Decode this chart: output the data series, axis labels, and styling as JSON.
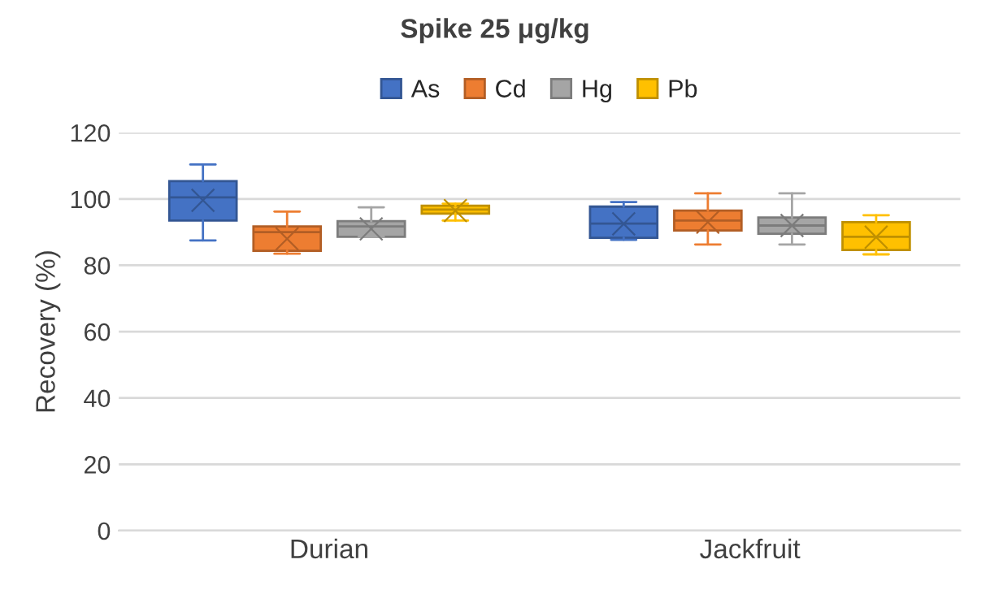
{
  "chart_data": {
    "type": "box",
    "title": "Spike 25 μg/kg",
    "ylabel": "Recovery (%)",
    "categories": [
      "Durian",
      "Jackfruit"
    ],
    "ylim": [
      0,
      120
    ],
    "yticks": [
      0,
      20,
      40,
      60,
      80,
      100,
      120
    ],
    "grid": "y",
    "legend": "top",
    "marker": "cross",
    "series": [
      {
        "name": "As",
        "color": "#4472c4",
        "boxes": [
          {
            "low": 87.5,
            "q1": 93.5,
            "median": 100.5,
            "q3": 105.4,
            "high": 110.4,
            "mean": 99.6
          },
          {
            "low": 87.7,
            "q1": 88.3,
            "median": 92.6,
            "q3": 97.7,
            "high": 99.1,
            "mean": 92.5
          }
        ]
      },
      {
        "name": "Cd",
        "color": "#ed7d31",
        "boxes": [
          {
            "low": 83.5,
            "q1": 84.4,
            "median": 90,
            "q3": 91.7,
            "high": 96.2,
            "mean": 88
          },
          {
            "low": 86.3,
            "q1": 90.5,
            "median": 93.5,
            "q3": 96.5,
            "high": 101.7,
            "mean": 93
          }
        ]
      },
      {
        "name": "Hg",
        "color": "#a5a5a5",
        "boxes": [
          {
            "low": 88.6,
            "q1": 88.6,
            "median": 91.7,
            "q3": 93.3,
            "high": 97.5,
            "mean": 91
          },
          {
            "low": 86.3,
            "q1": 89.5,
            "median": 92,
            "q3": 94.4,
            "high": 101.7,
            "mean": 92
          }
        ]
      },
      {
        "name": "Pb",
        "color": "#ffc000",
        "boxes": [
          {
            "low": 93.5,
            "q1": 95.6,
            "median": 96.8,
            "q3": 98,
            "high": 98.6,
            "mean": 96.5
          },
          {
            "low": 83.3,
            "q1": 84.6,
            "median": 88.6,
            "q3": 93,
            "high": 95.1,
            "mean": 88.5
          }
        ]
      }
    ]
  }
}
